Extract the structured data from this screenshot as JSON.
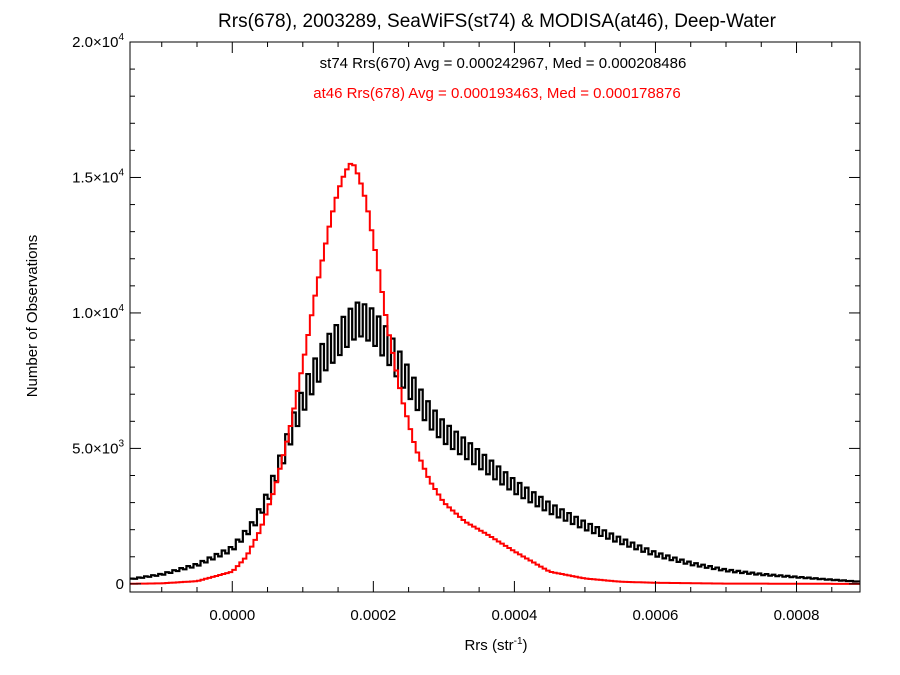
{
  "chart_data": {
    "type": "histogram",
    "title": "Rrs(678), 2003289, SeaWiFS(st74) & MODISA(at46), Deep-Water",
    "xlabel": {
      "base": "Rrs (str",
      "sup": "-1",
      "end": ")"
    },
    "ylabel": "Number of Observations",
    "xlim": [
      -0.000145,
      0.00089
    ],
    "ylim": [
      -300,
      20000
    ],
    "x_ticks": [
      {
        "value": 0.0,
        "label": "0.0000"
      },
      {
        "value": 0.0002,
        "label": "0.0002"
      },
      {
        "value": 0.0004,
        "label": "0.0004"
      },
      {
        "value": 0.0006,
        "label": "0.0006"
      },
      {
        "value": 0.0008,
        "label": "0.0008"
      }
    ],
    "y_ticks": [
      {
        "value": 0,
        "mant": "0",
        "exp": ""
      },
      {
        "value": 5000,
        "mant": "5.0×10",
        "exp": "3"
      },
      {
        "value": 10000,
        "mant": "1.0×10",
        "exp": "4"
      },
      {
        "value": 15000,
        "mant": "1.5×10",
        "exp": "4"
      },
      {
        "value": 20000,
        "mant": "2.0×10",
        "exp": "4"
      }
    ],
    "annotations": [
      {
        "text": "st74 Rrs(670) Avg = 0.000242967, Med = 0.000208486",
        "color": "#000000"
      },
      {
        "text": "at46 Rrs(678) Avg = 0.000193463, Med = 0.000178876",
        "color": "#ff0000"
      }
    ],
    "bin_width": 5e-06,
    "series": [
      {
        "color": "#000000",
        "x": [
          -0.00015,
          -0.0001,
          -5e-05,
          0.0,
          3e-05,
          5e-05,
          7e-05,
          9e-05,
          0.00011,
          0.00013,
          0.00015,
          0.00017,
          0.00018,
          0.0002,
          0.00022,
          0.00024,
          0.00026,
          0.00028,
          0.0003,
          0.00033,
          0.00036,
          0.0004,
          0.00045,
          0.0005,
          0.00055,
          0.0006,
          0.00065,
          0.0007,
          0.00075,
          0.0008,
          0.00085,
          0.00089
        ],
        "y": [
          150,
          350,
          700,
          1300,
          2200,
          3200,
          4600,
          6100,
          7400,
          8400,
          9000,
          9600,
          9800,
          9500,
          8800,
          7900,
          7000,
          6200,
          5600,
          5000,
          4400,
          3600,
          2800,
          2150,
          1600,
          1100,
          750,
          500,
          350,
          250,
          150,
          80
        ]
      },
      {
        "color": "#ff0000",
        "x": [
          -0.00015,
          -0.0001,
          -5e-05,
          0.0,
          2e-05,
          4e-05,
          6e-05,
          8e-05,
          0.0001,
          0.00012,
          0.00014,
          0.00015,
          0.00016,
          0.00017,
          0.00018,
          0.00019,
          0.0002,
          0.00021,
          0.00022,
          0.00024,
          0.00026,
          0.00028,
          0.0003,
          0.00033,
          0.00036,
          0.0004,
          0.00045,
          0.0005,
          0.00055,
          0.0006,
          0.0007,
          0.0008,
          0.00089
        ],
        "y": [
          0,
          20,
          100,
          450,
          1000,
          2000,
          3500,
          5500,
          8100,
          11000,
          13500,
          14500,
          15200,
          15600,
          15000,
          14100,
          12700,
          11200,
          9500,
          6900,
          5000,
          3800,
          3000,
          2300,
          1850,
          1200,
          450,
          200,
          80,
          40,
          10,
          5,
          0
        ]
      }
    ]
  }
}
